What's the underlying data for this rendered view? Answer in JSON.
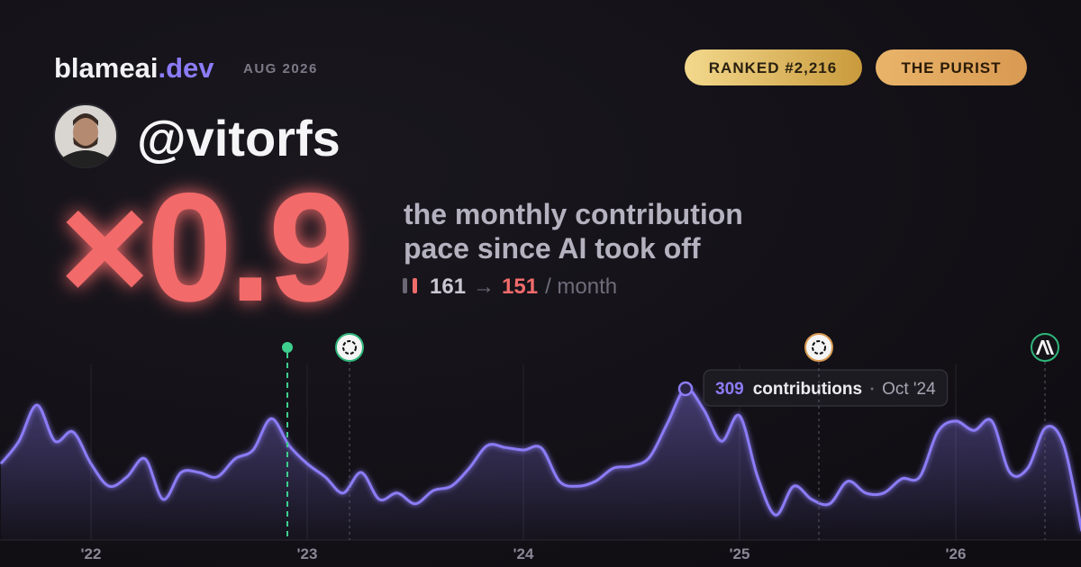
{
  "header": {
    "brand": "blameai",
    "brand_tld": ".dev",
    "period": "AUG 2026",
    "badges": [
      "RANKED #2,216",
      "THE PURIST"
    ]
  },
  "profile": {
    "handle": "@vitorfs"
  },
  "headline": {
    "multiplier": "×0.9",
    "description": [
      "the monthly contribution",
      "pace since AI took off"
    ],
    "before": 161,
    "arrow": "→",
    "after": 151,
    "unit": "/ month"
  },
  "chart_data": {
    "type": "area",
    "color": "#8b7cf6",
    "categories": [
      null,
      null,
      null,
      null,
      null,
      "'22",
      null,
      null,
      null,
      null,
      null,
      null,
      null,
      null,
      null,
      null,
      null,
      "'23",
      null,
      null,
      null,
      null,
      null,
      null,
      null,
      null,
      null,
      null,
      null,
      "'24",
      null,
      null,
      null,
      null,
      null,
      null,
      null,
      null,
      null,
      null,
      null,
      "'25",
      null,
      null,
      null,
      null,
      null,
      null,
      null,
      null,
      null,
      null,
      null,
      "'26",
      null,
      null,
      null,
      null,
      null,
      null,
      null
    ],
    "values": [
      156,
      202,
      276,
      202,
      221,
      156,
      110,
      129,
      166,
      83,
      138,
      138,
      129,
      166,
      184,
      248,
      193,
      156,
      129,
      96,
      138,
      83,
      96,
      74,
      101,
      110,
      147,
      193,
      189,
      184,
      188,
      120,
      110,
      120,
      147,
      151,
      169,
      239,
      309,
      267,
      202,
      254,
      129,
      51,
      110,
      83,
      74,
      120,
      96,
      96,
      125,
      129,
      221,
      243,
      224,
      243,
      138,
      147,
      230,
      193,
      18
    ],
    "tooltip": {
      "unit": "contributions",
      "date": "Oct '24"
    }
  }
}
